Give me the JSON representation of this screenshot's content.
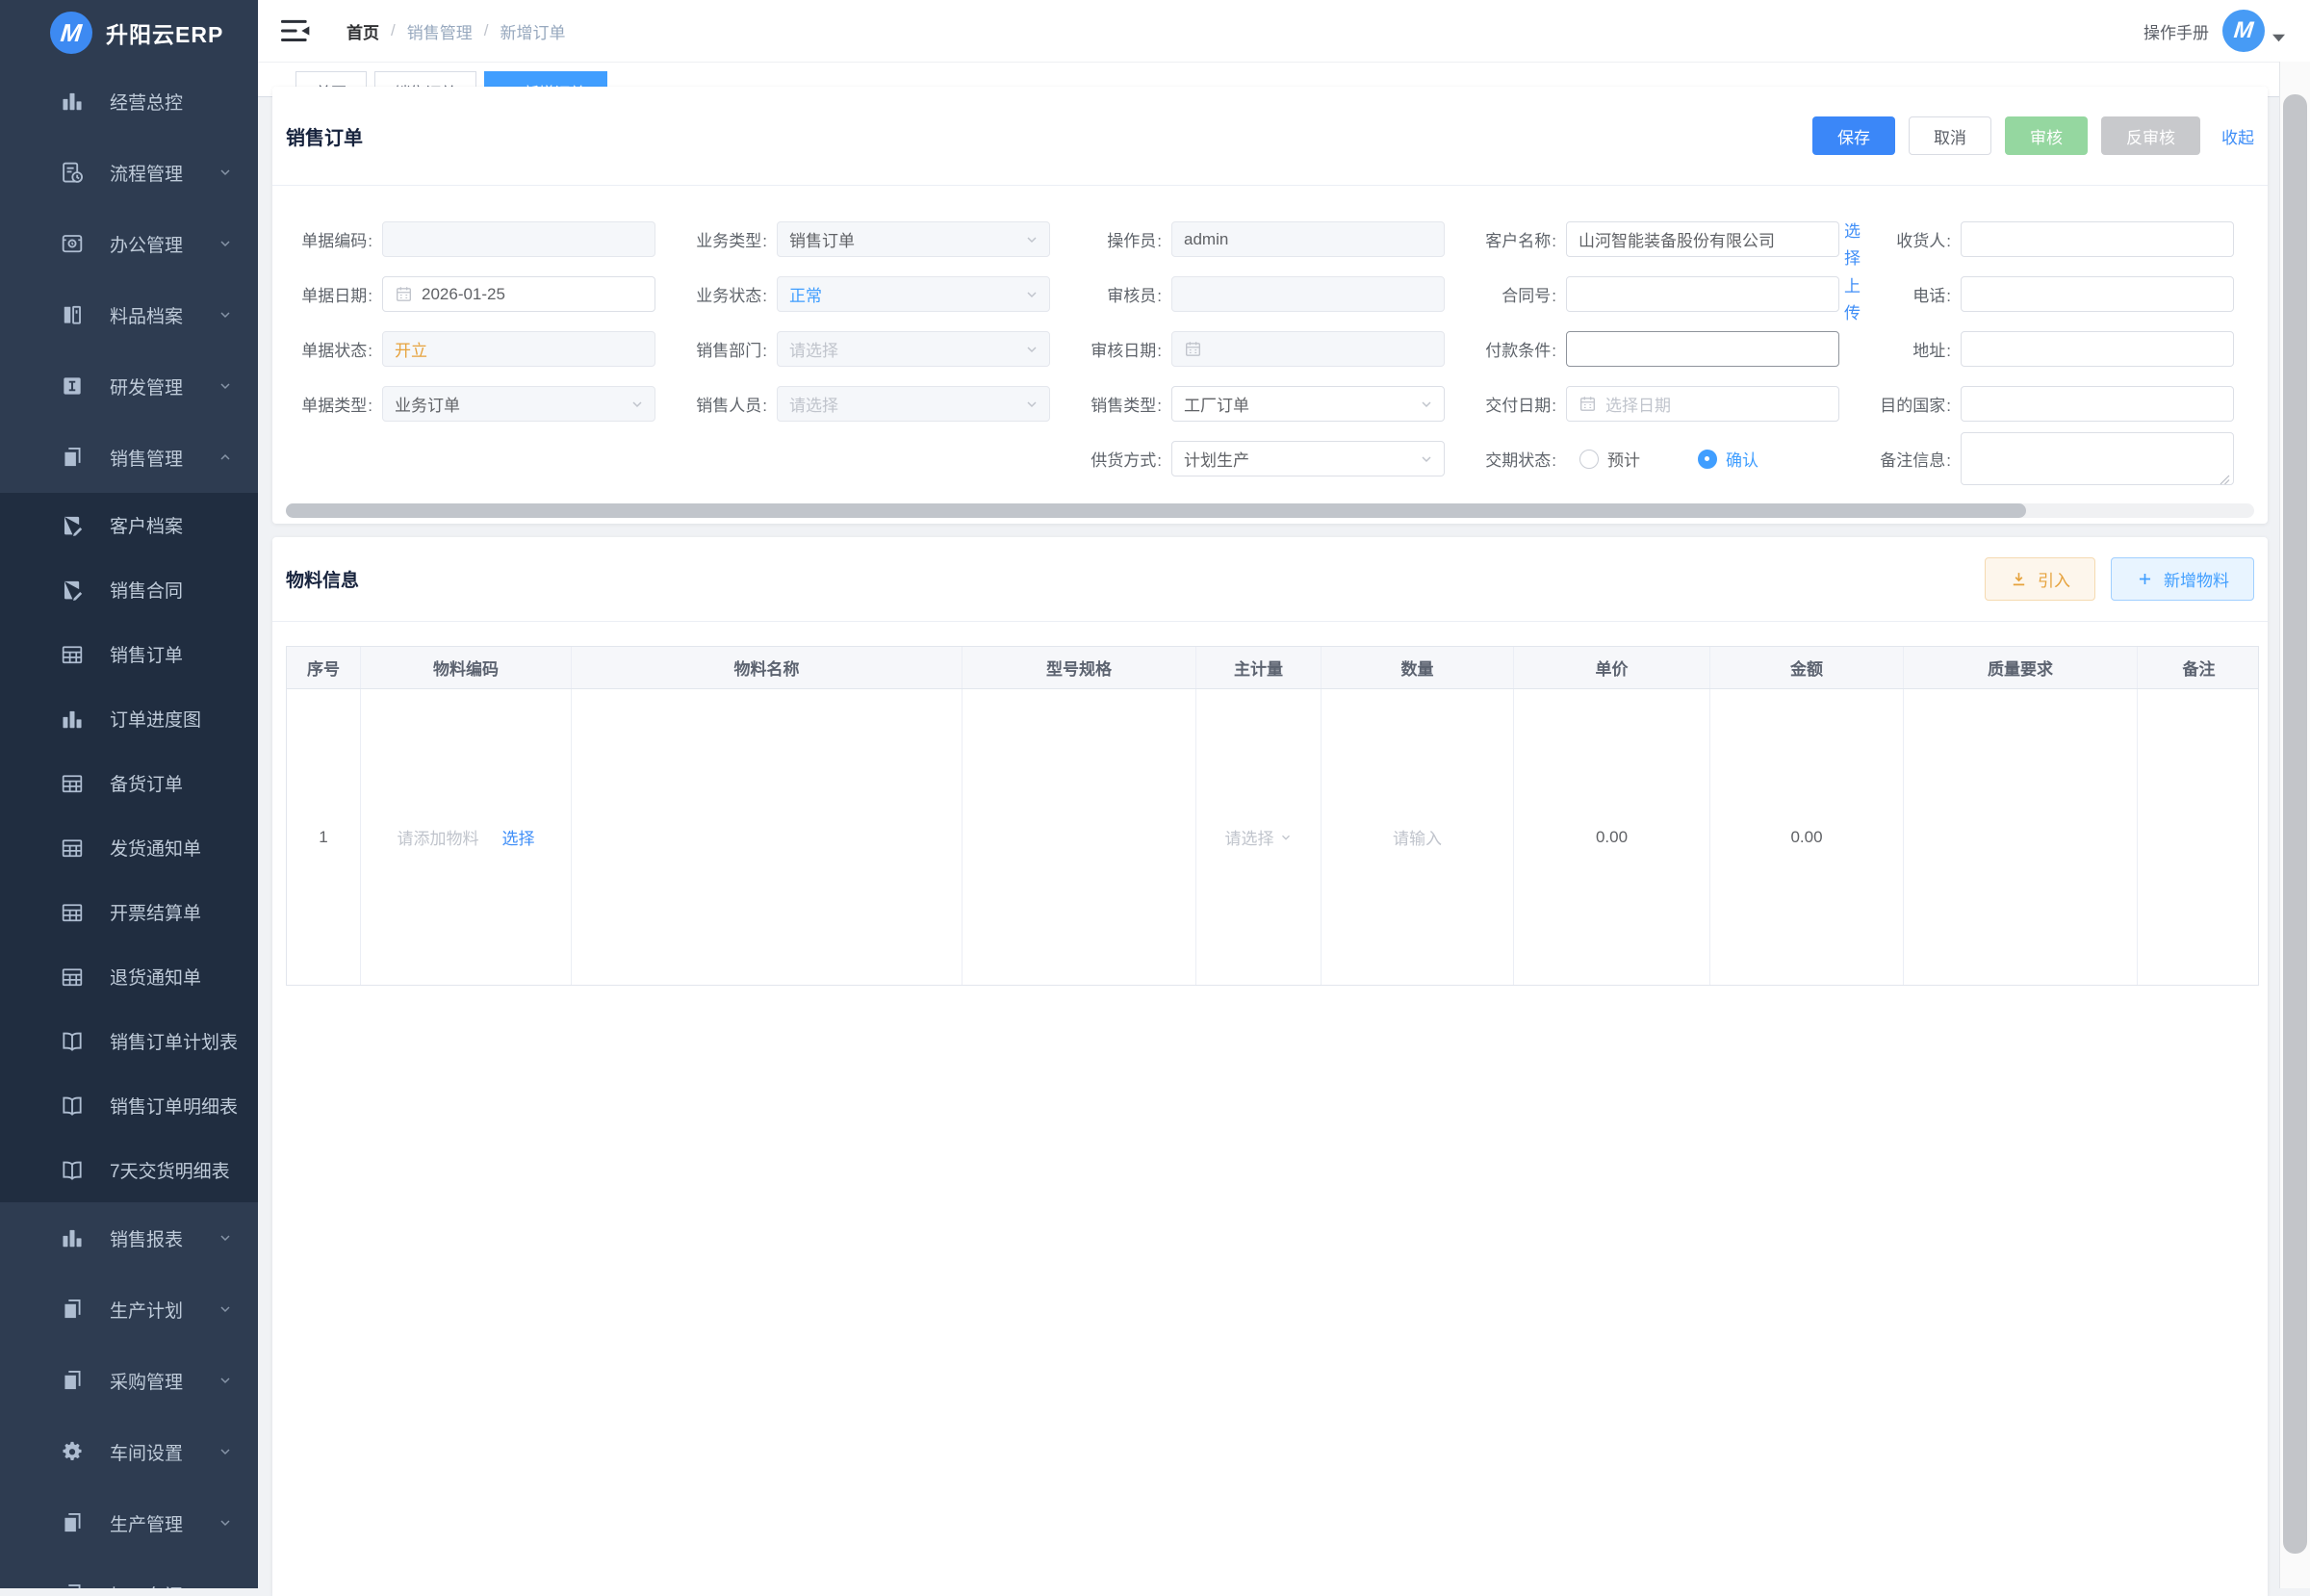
{
  "app": {
    "name": "升阳云ERP",
    "logo_letter": "M"
  },
  "topbar": {
    "breadcrumb": [
      "首页",
      "销售管理",
      "新增订单"
    ],
    "separator": "/",
    "manual_label": "操作手册",
    "avatar_letter": "M"
  },
  "tabs": [
    {
      "label": "首页",
      "active": false
    },
    {
      "label": "销售订单",
      "active": false
    },
    {
      "label": "新增订单",
      "active": true
    }
  ],
  "sidebar": {
    "items": [
      {
        "key": "dashboard",
        "label": "经营总控",
        "icon": "chart",
        "sub": false,
        "chevron": null
      },
      {
        "key": "flow-mgmt",
        "label": "流程管理",
        "icon": "flow",
        "sub": false,
        "chevron": "down"
      },
      {
        "key": "office-mgmt",
        "label": "办公管理",
        "icon": "office",
        "sub": false,
        "chevron": "down"
      },
      {
        "key": "material-archive",
        "label": "料品档案",
        "icon": "archive",
        "sub": false,
        "chevron": "down"
      },
      {
        "key": "rnd-mgmt",
        "label": "研发管理",
        "icon": "dev",
        "sub": false,
        "chevron": "down"
      },
      {
        "key": "sales-mgmt",
        "label": "销售管理",
        "icon": "docs",
        "sub": false,
        "chevron": "up"
      },
      {
        "key": "customer-archive",
        "label": "客户档案",
        "icon": "docpen",
        "sub": true,
        "chevron": null
      },
      {
        "key": "sales-contract",
        "label": "销售合同",
        "icon": "docpen",
        "sub": true,
        "chevron": null
      },
      {
        "key": "sales-order",
        "label": "销售订单",
        "icon": "grid",
        "sub": true,
        "chevron": null
      },
      {
        "key": "order-progress",
        "label": "订单进度图",
        "icon": "chart",
        "sub": true,
        "chevron": null
      },
      {
        "key": "stock-order",
        "label": "备货订单",
        "icon": "grid",
        "sub": true,
        "chevron": null
      },
      {
        "key": "shipment-notice",
        "label": "发货通知单",
        "icon": "grid",
        "sub": true,
        "chevron": null
      },
      {
        "key": "invoice-settlement",
        "label": "开票结算单",
        "icon": "grid",
        "sub": true,
        "chevron": null
      },
      {
        "key": "return-notice",
        "label": "退货通知单",
        "icon": "grid",
        "sub": true,
        "chevron": null
      },
      {
        "key": "order-plan-report",
        "label": "销售订单计划表",
        "icon": "book",
        "sub": true,
        "chevron": null
      },
      {
        "key": "order-detail-report",
        "label": "销售订单明细表",
        "icon": "book",
        "sub": true,
        "chevron": null
      },
      {
        "key": "delivery-7day-report",
        "label": "7天交货明细表",
        "icon": "book",
        "sub": true,
        "chevron": null
      },
      {
        "key": "sales-report",
        "label": "销售报表",
        "icon": "chart",
        "sub": false,
        "chevron": "down"
      },
      {
        "key": "production-plan",
        "label": "生产计划",
        "icon": "docs",
        "sub": false,
        "chevron": "down"
      },
      {
        "key": "purchase-mgmt",
        "label": "采购管理",
        "icon": "docs",
        "sub": false,
        "chevron": "down"
      },
      {
        "key": "workshop-settings",
        "label": "车间设置",
        "icon": "gear",
        "sub": false,
        "chevron": "down"
      },
      {
        "key": "production-mgmt",
        "label": "生产管理",
        "icon": "docs",
        "sub": false,
        "chevron": "down"
      },
      {
        "key": "processing-workshop",
        "label": "加工车间",
        "icon": "docs",
        "sub": false,
        "chevron": "down"
      }
    ]
  },
  "form": {
    "title": "销售订单",
    "actions": {
      "save": "保存",
      "cancel": "取消",
      "audit": "审核",
      "unaudit": "反审核",
      "collapse": "收起"
    },
    "fields": [
      {
        "key": "doc-code",
        "label": "单据编码",
        "col": 1,
        "row": 1,
        "type": "input",
        "value": "",
        "placeholder": "",
        "disabled": true
      },
      {
        "key": "doc-date",
        "label": "单据日期",
        "col": 1,
        "row": 2,
        "type": "date",
        "value": "2026-01-25",
        "placeholder": "",
        "disabled": false
      },
      {
        "key": "doc-status",
        "label": "单据状态",
        "col": 1,
        "row": 3,
        "type": "input",
        "value": "开立",
        "color": "#e6a23c",
        "disabled": true
      },
      {
        "key": "doc-type",
        "label": "单据类型",
        "col": 1,
        "row": 4,
        "type": "select",
        "value": "业务订单",
        "disabled": true
      },
      {
        "key": "biz-type",
        "label": "业务类型",
        "col": 2,
        "row": 1,
        "type": "select",
        "value": "销售订单",
        "disabled": true
      },
      {
        "key": "biz-status",
        "label": "业务状态",
        "col": 2,
        "row": 2,
        "type": "select",
        "value": "正常",
        "color": "#409eff",
        "disabled": true
      },
      {
        "key": "sales-dept",
        "label": "销售部门",
        "col": 2,
        "row": 3,
        "type": "select",
        "value": "",
        "placeholder": "请选择",
        "disabled": true
      },
      {
        "key": "sales-person",
        "label": "销售人员",
        "col": 2,
        "row": 4,
        "type": "select",
        "value": "",
        "placeholder": "请选择",
        "disabled": true
      },
      {
        "key": "operator",
        "label": "操作员",
        "col": 3,
        "row": 1,
        "type": "input",
        "value": "admin",
        "disabled": true
      },
      {
        "key": "auditor",
        "label": "审核员",
        "col": 3,
        "row": 2,
        "type": "input",
        "value": "",
        "disabled": true
      },
      {
        "key": "audit-date",
        "label": "审核日期",
        "col": 3,
        "row": 3,
        "type": "date",
        "value": "",
        "placeholder": "",
        "disabled": true
      },
      {
        "key": "sales-type",
        "label": "销售类型",
        "col": 3,
        "row": 4,
        "type": "select",
        "value": "工厂订单",
        "disabled": false
      },
      {
        "key": "supply-mode",
        "label": "供货方式",
        "col": 3,
        "row": 5,
        "type": "select",
        "value": "计划生产",
        "disabled": false
      },
      {
        "key": "customer-name",
        "label": "客户名称",
        "col": 4,
        "row": 1,
        "type": "input",
        "value": "山河智能装备股份有限公司",
        "disabled": false,
        "link": "选择"
      },
      {
        "key": "contract-no",
        "label": "合同号",
        "col": 4,
        "row": 2,
        "type": "input",
        "value": "",
        "disabled": false,
        "link": "上传"
      },
      {
        "key": "payment-terms",
        "label": "付款条件",
        "col": 4,
        "row": 3,
        "type": "input",
        "value": "",
        "disabled": false,
        "border": "#8f949c"
      },
      {
        "key": "delivery-date",
        "label": "交付日期",
        "col": 4,
        "row": 4,
        "type": "date",
        "value": "",
        "placeholder": "选择日期",
        "disabled": false
      },
      {
        "key": "delivery-status",
        "label": "交期状态",
        "col": 4,
        "row": 5,
        "type": "radio",
        "options": [
          {
            "label": "预计",
            "selected": false
          },
          {
            "label": "确认",
            "selected": true
          }
        ]
      },
      {
        "key": "consignee",
        "label": "收货人",
        "col": 5,
        "row": 1,
        "type": "input",
        "value": "",
        "disabled": false
      },
      {
        "key": "phone",
        "label": "电话",
        "col": 5,
        "row": 2,
        "type": "input",
        "value": "",
        "disabled": false
      },
      {
        "key": "address",
        "label": "地址",
        "col": 5,
        "row": 3,
        "type": "input",
        "value": "",
        "disabled": false
      },
      {
        "key": "dest-country",
        "label": "目的国家",
        "col": 5,
        "row": 4,
        "type": "input",
        "value": "",
        "disabled": false
      },
      {
        "key": "remarks",
        "label": "备注信息",
        "col": 5,
        "row": 5,
        "type": "textarea",
        "value": "",
        "disabled": false
      }
    ]
  },
  "material": {
    "title": "物料信息",
    "import_label": "引入",
    "add_label": "新增物料",
    "table": {
      "columns": [
        "序号",
        "物料编码",
        "物料名称",
        "型号规格",
        "主计量",
        "数量",
        "单价",
        "金额",
        "质量要求",
        "备注"
      ],
      "row": {
        "seq": "1",
        "code_placeholder": "请添加物料",
        "code_action": "选择",
        "unit_placeholder": "请选择",
        "qty_placeholder": "请输入",
        "price": "0.00",
        "amount": "0.00"
      }
    }
  },
  "colors": {
    "primary": "#409eff",
    "save_blue": "#3b87f8",
    "status_orange": "#e6a23c",
    "audit_green": "#95d7a0",
    "disabled_gray": "#c8c9cc",
    "sidebar_bg": "#2e3c51",
    "submenu_bg": "#202d40",
    "page_bg": "#f0f2f5"
  }
}
